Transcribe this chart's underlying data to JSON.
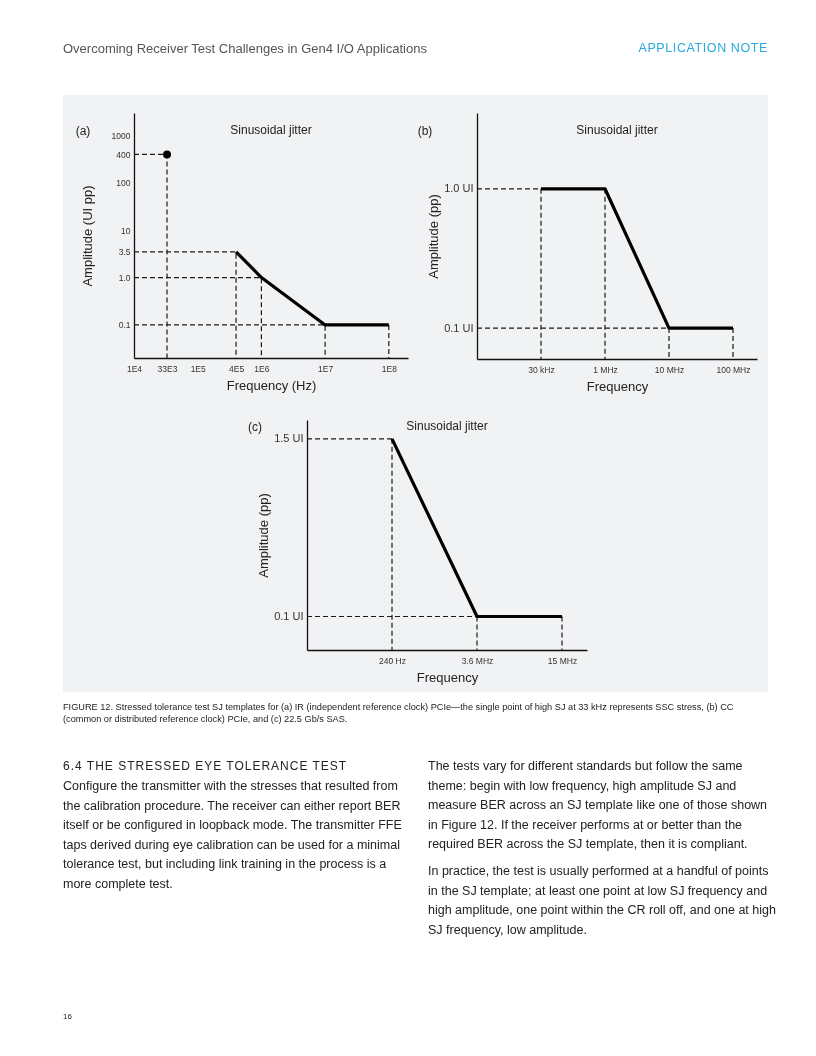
{
  "chart_data": [
    {
      "type": "other",
      "title": "Overcoming Receiver Test Challenges in Gen4 I/O Applications",
      "annotations": [
        "APPLICATION NOTE"
      ]
    },
    {
      "type": "line",
      "title": "Sinusoidal jitter",
      "xlabel": "Frequency (Hz)",
      "ylabel": "Amplitude (UI pp)",
      "annotations": [
        "(a)"
      ],
      "log": "xy",
      "xlim": [
        10000,
        200000000
      ],
      "ylim": [
        0.02,
        3000
      ],
      "xticks": [
        {
          "value": 10000,
          "label": "1E4"
        },
        {
          "value": 33000,
          "label": "33E3"
        },
        {
          "value": 100000,
          "label": "1E5"
        },
        {
          "value": 400000,
          "label": "4E5"
        },
        {
          "value": 1000000,
          "label": "1E6"
        },
        {
          "value": 10000000,
          "label": "1E7"
        },
        {
          "value": 100000000,
          "label": "1E8"
        }
      ],
      "yticks": [
        0.1,
        {
          "value": 1,
          "label": "1.0"
        },
        3.5,
        10,
        100,
        400,
        1000
      ],
      "series": [
        {
          "type": "line",
          "line_style": "dashed",
          "color": "#1a1a1a",
          "x": [
            10000,
            33000,
            33000
          ],
          "values": [
            400,
            400,
            0.02
          ]
        },
        {
          "type": "line",
          "line_style": "dashed",
          "color": "#1a1a1a",
          "x": [
            10000,
            400000,
            400000
          ],
          "values": [
            3.5,
            3.5,
            0.02
          ]
        },
        {
          "type": "line",
          "line_style": "dashed",
          "color": "#1a1a1a",
          "x": [
            10000,
            1000000,
            1000000
          ],
          "values": [
            1,
            1,
            0.02
          ]
        },
        {
          "type": "line",
          "line_style": "dashed",
          "color": "#1a1a1a",
          "x": [
            10000,
            10000000,
            10000000
          ],
          "values": [
            0.1,
            0.1,
            0.02
          ]
        },
        {
          "type": "line",
          "line_style": "dashed",
          "color": "#1a1a1a",
          "x": [
            100000000,
            100000000
          ],
          "values": [
            0.1,
            0.02
          ]
        },
        {
          "type": "scatter",
          "marker": "circle",
          "color": "#000000",
          "x": [
            33000
          ],
          "values": [
            400
          ]
        },
        {
          "type": "line",
          "line_style": "solid",
          "color": "#000000",
          "x": [
            400000,
            1000000,
            10000000,
            100000000
          ],
          "values": [
            3.5,
            1,
            0.1,
            0.1
          ]
        }
      ]
    },
    {
      "type": "line",
      "title": "Sinusoidal jitter",
      "xlabel": "Frequency",
      "ylabel": "Amplitude (pp)",
      "annotations": [
        "(b)"
      ],
      "log": "y",
      "categories": [
        null,
        "30 kHz",
        "1 MHz",
        "10 MHz",
        "100 MHz"
      ],
      "ylim": [
        0.06,
        3.5
      ],
      "yticks": [
        {
          "value": 0.1,
          "label": "0.1 UI"
        },
        {
          "value": 1,
          "label": "1.0 UI"
        }
      ],
      "series": [
        {
          "type": "line",
          "line_style": "dashed",
          "color": "#1a1a1a",
          "values": [
            1,
            1,
            null,
            null,
            null
          ]
        },
        {
          "type": "line",
          "line_style": "dashed",
          "color": "#1a1a1a",
          "values": [
            0.1,
            0.1,
            0.1,
            0.1,
            null
          ]
        },
        {
          "type": "line",
          "line_style": "dashed",
          "color": "#1a1a1a",
          "x": [
            "30 kHz",
            "30 kHz"
          ],
          "values": [
            1,
            0.06
          ]
        },
        {
          "type": "line",
          "line_style": "dashed",
          "color": "#1a1a1a",
          "x": [
            "1 MHz",
            "1 MHz"
          ],
          "values": [
            1,
            0.06
          ]
        },
        {
          "type": "line",
          "line_style": "dashed",
          "color": "#1a1a1a",
          "x": [
            "10 MHz",
            "10 MHz"
          ],
          "values": [
            0.1,
            0.06
          ]
        },
        {
          "type": "line",
          "line_style": "dashed",
          "color": "#1a1a1a",
          "x": [
            "100 MHz",
            "100 MHz"
          ],
          "values": [
            0.1,
            0.06
          ]
        },
        {
          "type": "line",
          "line_style": "solid",
          "color": "#000000",
          "values": [
            null,
            1,
            1,
            0.1,
            0.1
          ]
        }
      ]
    },
    {
      "type": "line",
      "title": "Sinusoidal jitter",
      "xlabel": "Frequency",
      "ylabel": "Amplitude (pp)",
      "annotations": [
        "(c)"
      ],
      "log": "y",
      "categories": [
        null,
        "240 Hz",
        "3.6 MHz",
        "15 MHz"
      ],
      "ylim": [
        0.06,
        2
      ],
      "yticks": [
        {
          "value": 0.1,
          "label": "0.1 UI"
        },
        {
          "value": 1.5,
          "label": "1.5 UI"
        }
      ],
      "series": [
        {
          "type": "line",
          "line_style": "dashed",
          "color": "#1a1a1a",
          "values": [
            1.5,
            1.5,
            null,
            null
          ]
        },
        {
          "type": "line",
          "line_style": "dashed",
          "color": "#1a1a1a",
          "values": [
            0.1,
            0.1,
            0.1,
            null
          ]
        },
        {
          "type": "line",
          "line_style": "dashed",
          "color": "#1a1a1a",
          "x": [
            "240 Hz",
            "240 Hz"
          ],
          "values": [
            1.5,
            0.06
          ]
        },
        {
          "type": "line",
          "line_style": "dashed",
          "color": "#1a1a1a",
          "x": [
            "3.6 MHz",
            "3.6 MHz"
          ],
          "values": [
            0.1,
            0.06
          ]
        },
        {
          "type": "line",
          "line_style": "dashed",
          "color": "#1a1a1a",
          "x": [
            "15 MHz",
            "15 MHz"
          ],
          "values": [
            0.1,
            0.06
          ]
        },
        {
          "type": "line",
          "line_style": "solid",
          "color": "#000000",
          "values": [
            null,
            1.5,
            0.1,
            0.1
          ]
        }
      ]
    },
    {
      "type": "other",
      "annotations": [
        "FIGURE 12. Stressed tolerance test SJ templates for (a) IR (independent reference clock) PCIe—the single point of high SJ at 33 kHz represents SSC stress, (b) CC (common or distributed reference clock) PCIe, and (c) 22.5 Gb/s SAS.",
        "6.4 THE STRESSED EYE TOLERANCE TEST",
        "Configure the transmitter with the stresses that resulted from the calibration procedure. The receiver can either report BER itself or be configured in loopback mode. The transmitter FFE taps derived during eye calibration can be used for a minimal tolerance test, but including link training in the process is a more complete test.",
        "The tests vary for different standards but follow the same theme: begin with low frequency, high amplitude SJ and measure BER across an SJ template like one of those shown in Figure 12. If the receiver performs at or better than the required BER across the SJ template, then it is compliant.",
        "In practice, the test is usually performed at a handful of points in the SJ template; at least one point at low SJ frequency and high amplitude, one point within the CR roll off, and one at high SJ frequency, low amplitude.",
        "16"
      ]
    }
  ]
}
